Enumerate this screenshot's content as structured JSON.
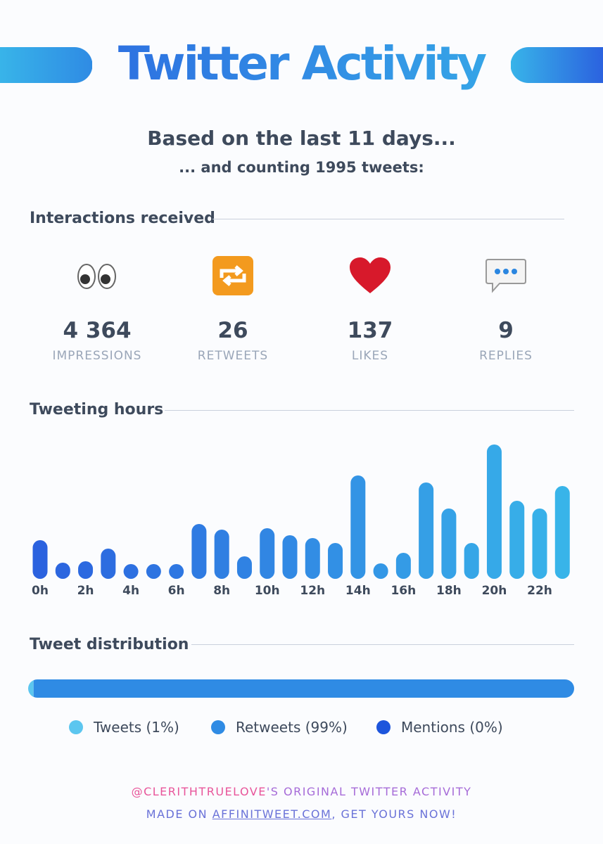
{
  "header": {
    "title": "Twitter Activity",
    "subtitle": "Based on the last 11 days...",
    "subtitle2": "... and counting 1995 tweets:"
  },
  "interactions": {
    "heading": "Interactions received",
    "stats": [
      {
        "value": "4 364",
        "label": "IMPRESSIONS"
      },
      {
        "value": "26",
        "label": "RETWEETS"
      },
      {
        "value": "137",
        "label": "LIKES"
      },
      {
        "value": "9",
        "label": "REPLIES"
      }
    ]
  },
  "hours": {
    "heading": "Tweeting hours",
    "chart": {
      "type": "bar",
      "categories": [
        "0h",
        null,
        "2h",
        null,
        "4h",
        null,
        "6h",
        null,
        "8h",
        null,
        "10h",
        null,
        "12h",
        null,
        "14h",
        null,
        "16h",
        null,
        "18h",
        null,
        "20h",
        null,
        "22h",
        null
      ],
      "values": [
        55,
        23,
        25,
        43,
        20,
        20,
        20,
        78,
        70,
        32,
        72,
        62,
        58,
        51,
        147,
        22,
        37,
        137,
        100,
        51,
        191,
        111,
        100,
        132
      ],
      "ylim": [
        0,
        191
      ],
      "color_start": "#2b62df",
      "color_end": "#38b4e9"
    }
  },
  "distribution": {
    "heading": "Tweet distribution",
    "segments": [
      {
        "name": "Tweets (1%)",
        "value": 1,
        "color": "#5cc6ef"
      },
      {
        "name": "Retweets (99%)",
        "value": 99,
        "color": "#2f8be4"
      },
      {
        "name": "Mentions (0%)",
        "value": 0,
        "color": "#1d55dc"
      }
    ]
  },
  "footer": {
    "handle": "@CLERITHTRUELOVE",
    "line1_rest": "'S ORIGINAL TWITTER ACTIVITY",
    "made_on": "MADE ON",
    "site": "AFFINITWEET.COM",
    "line2_rest": ", GET YOURS NOW!"
  }
}
